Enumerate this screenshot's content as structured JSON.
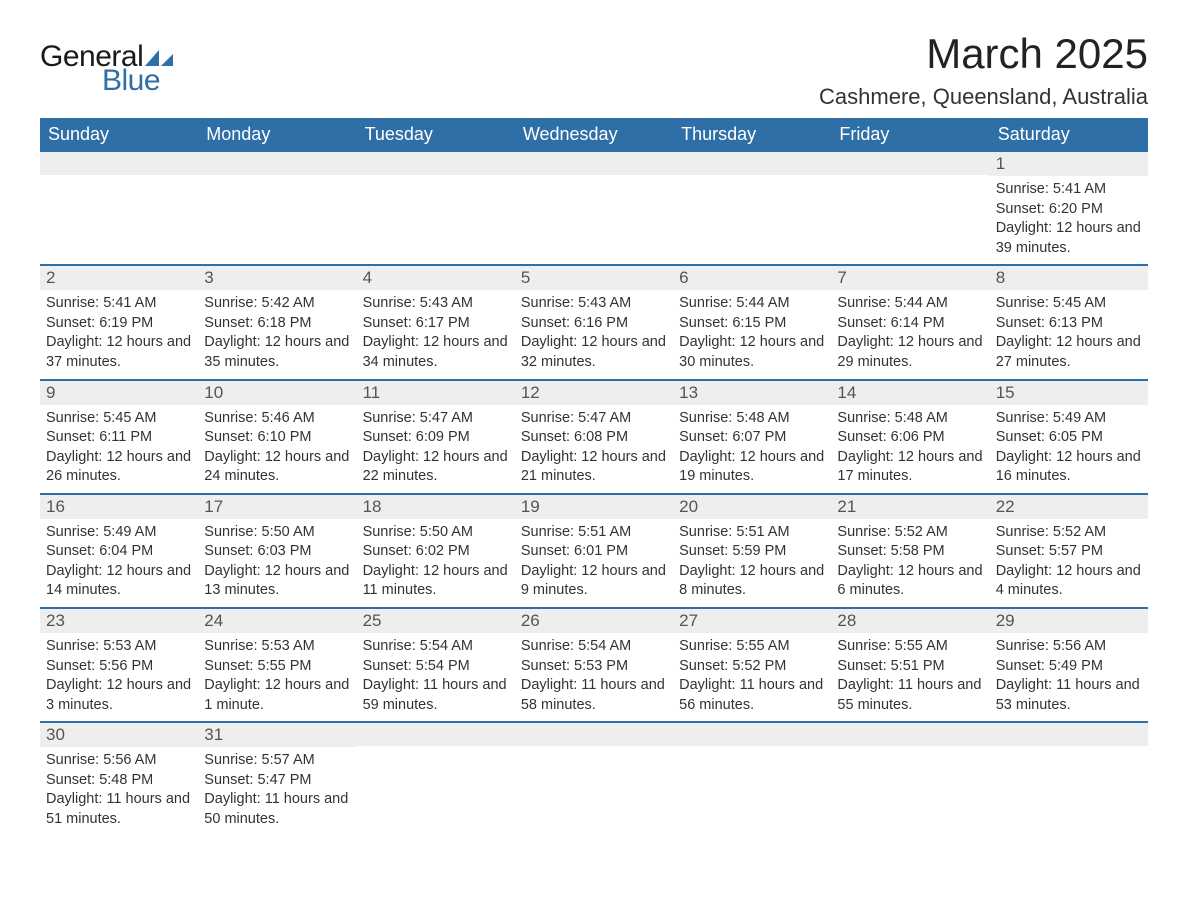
{
  "logo": {
    "text_general": "General",
    "text_blue": "Blue",
    "shape_color": "#2f6fa7"
  },
  "header": {
    "month_title": "March 2025",
    "location": "Cashmere, Queensland, Australia"
  },
  "colors": {
    "header_bg": "#2f6fa7",
    "header_text": "#ffffff",
    "daynum_bg": "#eeeeee",
    "border": "#2f6fa7",
    "body_text": "#333333",
    "page_bg": "#ffffff"
  },
  "typography": {
    "month_title_fontsize": 42,
    "location_fontsize": 22,
    "dayheader_fontsize": 18,
    "daynum_fontsize": 17,
    "body_fontsize": 14.5,
    "font_family": "Arial"
  },
  "calendar": {
    "type": "table",
    "day_headers": [
      "Sunday",
      "Monday",
      "Tuesday",
      "Wednesday",
      "Thursday",
      "Friday",
      "Saturday"
    ],
    "labels": {
      "sunrise": "Sunrise:",
      "sunset": "Sunset:",
      "daylight": "Daylight:"
    },
    "weeks": [
      [
        null,
        null,
        null,
        null,
        null,
        null,
        {
          "n": "1",
          "sunrise": "5:41 AM",
          "sunset": "6:20 PM",
          "daylight": "12 hours and 39 minutes."
        }
      ],
      [
        {
          "n": "2",
          "sunrise": "5:41 AM",
          "sunset": "6:19 PM",
          "daylight": "12 hours and 37 minutes."
        },
        {
          "n": "3",
          "sunrise": "5:42 AM",
          "sunset": "6:18 PM",
          "daylight": "12 hours and 35 minutes."
        },
        {
          "n": "4",
          "sunrise": "5:43 AM",
          "sunset": "6:17 PM",
          "daylight": "12 hours and 34 minutes."
        },
        {
          "n": "5",
          "sunrise": "5:43 AM",
          "sunset": "6:16 PM",
          "daylight": "12 hours and 32 minutes."
        },
        {
          "n": "6",
          "sunrise": "5:44 AM",
          "sunset": "6:15 PM",
          "daylight": "12 hours and 30 minutes."
        },
        {
          "n": "7",
          "sunrise": "5:44 AM",
          "sunset": "6:14 PM",
          "daylight": "12 hours and 29 minutes."
        },
        {
          "n": "8",
          "sunrise": "5:45 AM",
          "sunset": "6:13 PM",
          "daylight": "12 hours and 27 minutes."
        }
      ],
      [
        {
          "n": "9",
          "sunrise": "5:45 AM",
          "sunset": "6:11 PM",
          "daylight": "12 hours and 26 minutes."
        },
        {
          "n": "10",
          "sunrise": "5:46 AM",
          "sunset": "6:10 PM",
          "daylight": "12 hours and 24 minutes."
        },
        {
          "n": "11",
          "sunrise": "5:47 AM",
          "sunset": "6:09 PM",
          "daylight": "12 hours and 22 minutes."
        },
        {
          "n": "12",
          "sunrise": "5:47 AM",
          "sunset": "6:08 PM",
          "daylight": "12 hours and 21 minutes."
        },
        {
          "n": "13",
          "sunrise": "5:48 AM",
          "sunset": "6:07 PM",
          "daylight": "12 hours and 19 minutes."
        },
        {
          "n": "14",
          "sunrise": "5:48 AM",
          "sunset": "6:06 PM",
          "daylight": "12 hours and 17 minutes."
        },
        {
          "n": "15",
          "sunrise": "5:49 AM",
          "sunset": "6:05 PM",
          "daylight": "12 hours and 16 minutes."
        }
      ],
      [
        {
          "n": "16",
          "sunrise": "5:49 AM",
          "sunset": "6:04 PM",
          "daylight": "12 hours and 14 minutes."
        },
        {
          "n": "17",
          "sunrise": "5:50 AM",
          "sunset": "6:03 PM",
          "daylight": "12 hours and 13 minutes."
        },
        {
          "n": "18",
          "sunrise": "5:50 AM",
          "sunset": "6:02 PM",
          "daylight": "12 hours and 11 minutes."
        },
        {
          "n": "19",
          "sunrise": "5:51 AM",
          "sunset": "6:01 PM",
          "daylight": "12 hours and 9 minutes."
        },
        {
          "n": "20",
          "sunrise": "5:51 AM",
          "sunset": "5:59 PM",
          "daylight": "12 hours and 8 minutes."
        },
        {
          "n": "21",
          "sunrise": "5:52 AM",
          "sunset": "5:58 PM",
          "daylight": "12 hours and 6 minutes."
        },
        {
          "n": "22",
          "sunrise": "5:52 AM",
          "sunset": "5:57 PM",
          "daylight": "12 hours and 4 minutes."
        }
      ],
      [
        {
          "n": "23",
          "sunrise": "5:53 AM",
          "sunset": "5:56 PM",
          "daylight": "12 hours and 3 minutes."
        },
        {
          "n": "24",
          "sunrise": "5:53 AM",
          "sunset": "5:55 PM",
          "daylight": "12 hours and 1 minute."
        },
        {
          "n": "25",
          "sunrise": "5:54 AM",
          "sunset": "5:54 PM",
          "daylight": "11 hours and 59 minutes."
        },
        {
          "n": "26",
          "sunrise": "5:54 AM",
          "sunset": "5:53 PM",
          "daylight": "11 hours and 58 minutes."
        },
        {
          "n": "27",
          "sunrise": "5:55 AM",
          "sunset": "5:52 PM",
          "daylight": "11 hours and 56 minutes."
        },
        {
          "n": "28",
          "sunrise": "5:55 AM",
          "sunset": "5:51 PM",
          "daylight": "11 hours and 55 minutes."
        },
        {
          "n": "29",
          "sunrise": "5:56 AM",
          "sunset": "5:49 PM",
          "daylight": "11 hours and 53 minutes."
        }
      ],
      [
        {
          "n": "30",
          "sunrise": "5:56 AM",
          "sunset": "5:48 PM",
          "daylight": "11 hours and 51 minutes."
        },
        {
          "n": "31",
          "sunrise": "5:57 AM",
          "sunset": "5:47 PM",
          "daylight": "11 hours and 50 minutes."
        },
        null,
        null,
        null,
        null,
        null
      ]
    ]
  }
}
